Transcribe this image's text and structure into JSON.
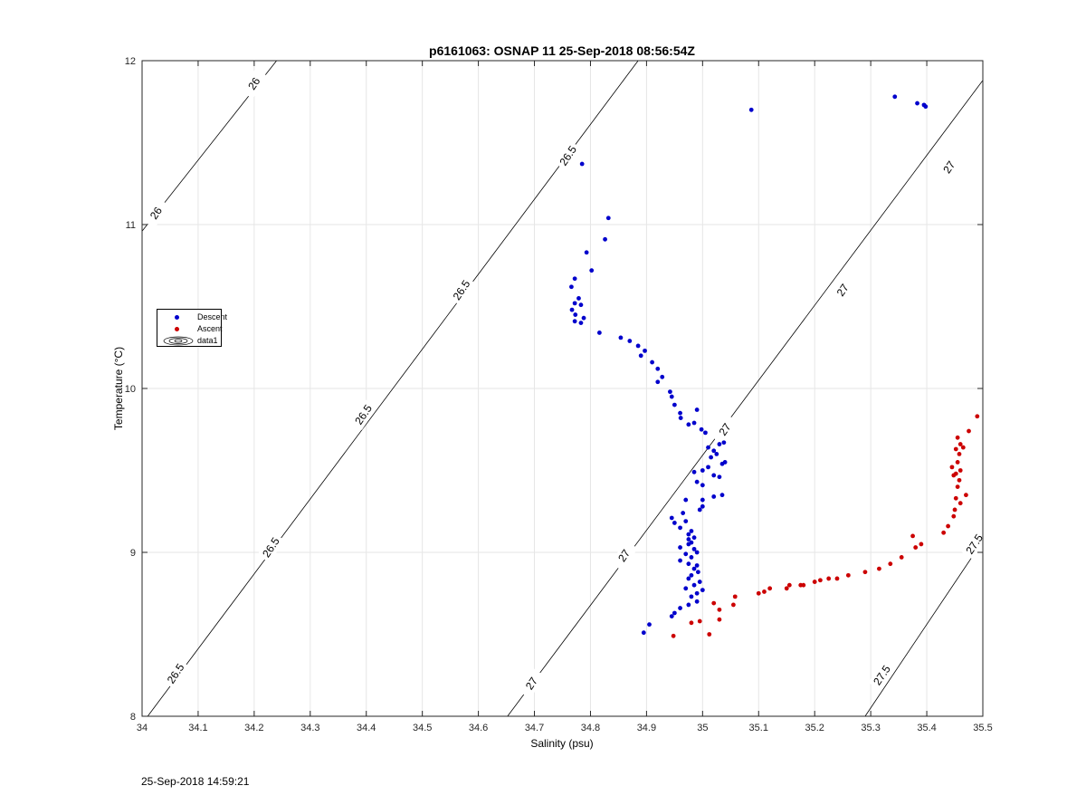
{
  "chart_data": {
    "type": "scatter",
    "title": "p6161063: OSNAP 11 25-Sep-2018 08:56:54Z",
    "xlabel": "Salinity (psu)",
    "ylabel": "Temperature (°C)",
    "xlim": [
      34,
      35.5
    ],
    "ylim": [
      8,
      12
    ],
    "x_ticks": [
      "34",
      "34.1",
      "34.2",
      "34.3",
      "34.4",
      "34.5",
      "34.6",
      "34.7",
      "34.8",
      "34.9",
      "35",
      "35.1",
      "35.2",
      "35.3",
      "35.4",
      "35.5"
    ],
    "y_ticks": [
      "8",
      "9",
      "10",
      "11",
      "12"
    ],
    "grid": true,
    "legend_position": "left",
    "legend": [
      "Descent",
      "Ascent",
      "data1"
    ],
    "contour_lines": [
      {
        "label": "26",
        "points": [
          [
            34.0,
            10.96
          ],
          [
            34.24,
            12.0
          ]
        ]
      },
      {
        "label": "26.5",
        "points": [
          [
            34.01,
            8.0
          ],
          [
            34.885,
            12.0
          ]
        ]
      },
      {
        "label": "27",
        "points": [
          [
            34.652,
            8.0
          ],
          [
            35.5,
            11.88
          ]
        ]
      },
      {
        "label": "27.5",
        "points": [
          [
            35.29,
            8.0
          ],
          [
            35.5,
            9.07
          ]
        ]
      }
    ],
    "contour_labels": [
      {
        "text": "26",
        "x": 34.2,
        "y": 11.86
      },
      {
        "text": "26",
        "x": 34.025,
        "y": 11.07
      },
      {
        "text": "26.5",
        "x": 34.76,
        "y": 11.42
      },
      {
        "text": "26.5",
        "x": 34.57,
        "y": 10.6
      },
      {
        "text": "26.5",
        "x": 34.395,
        "y": 9.84
      },
      {
        "text": "26.5",
        "x": 34.23,
        "y": 9.03
      },
      {
        "text": "26.5",
        "x": 34.06,
        "y": 8.26
      },
      {
        "text": "27",
        "x": 35.44,
        "y": 11.35
      },
      {
        "text": "27",
        "x": 35.25,
        "y": 10.6
      },
      {
        "text": "27",
        "x": 35.04,
        "y": 9.75
      },
      {
        "text": "27",
        "x": 34.86,
        "y": 8.98
      },
      {
        "text": "27",
        "x": 34.695,
        "y": 8.2
      },
      {
        "text": "27.5",
        "x": 35.485,
        "y": 9.05
      },
      {
        "text": "27.5",
        "x": 35.32,
        "y": 8.25
      }
    ],
    "series": [
      {
        "name": "Descent",
        "color": "#0000cc",
        "points": [
          [
            35.087,
            11.7
          ],
          [
            35.343,
            11.78
          ],
          [
            35.383,
            11.74
          ],
          [
            35.395,
            11.73
          ],
          [
            35.398,
            11.72
          ],
          [
            34.785,
            11.37
          ],
          [
            34.832,
            11.04
          ],
          [
            34.826,
            10.91
          ],
          [
            34.793,
            10.83
          ],
          [
            34.802,
            10.72
          ],
          [
            34.772,
            10.67
          ],
          [
            34.766,
            10.62
          ],
          [
            34.779,
            10.55
          ],
          [
            34.772,
            10.52
          ],
          [
            34.783,
            10.51
          ],
          [
            34.767,
            10.48
          ],
          [
            34.773,
            10.45
          ],
          [
            34.788,
            10.43
          ],
          [
            34.772,
            10.41
          ],
          [
            34.783,
            10.4
          ],
          [
            34.816,
            10.34
          ],
          [
            34.854,
            10.31
          ],
          [
            34.87,
            10.29
          ],
          [
            34.885,
            10.26
          ],
          [
            34.897,
            10.23
          ],
          [
            34.89,
            10.2
          ],
          [
            34.91,
            10.16
          ],
          [
            34.92,
            10.12
          ],
          [
            34.928,
            10.07
          ],
          [
            34.92,
            10.04
          ],
          [
            34.942,
            9.98
          ],
          [
            34.945,
            9.95
          ],
          [
            34.95,
            9.9
          ],
          [
            34.96,
            9.85
          ],
          [
            34.961,
            9.82
          ],
          [
            34.975,
            9.78
          ],
          [
            34.985,
            9.79
          ],
          [
            34.99,
            9.87
          ],
          [
            34.998,
            9.75
          ],
          [
            35.005,
            9.73
          ],
          [
            35.038,
            9.67
          ],
          [
            35.03,
            9.66
          ],
          [
            35.01,
            9.64
          ],
          [
            35.02,
            9.62
          ],
          [
            35.025,
            9.6
          ],
          [
            35.015,
            9.58
          ],
          [
            35.04,
            9.55
          ],
          [
            35.035,
            9.54
          ],
          [
            35.01,
            9.52
          ],
          [
            35.0,
            9.5
          ],
          [
            34.985,
            9.49
          ],
          [
            35.02,
            9.47
          ],
          [
            35.03,
            9.46
          ],
          [
            34.99,
            9.43
          ],
          [
            35.0,
            9.41
          ],
          [
            35.035,
            9.35
          ],
          [
            35.02,
            9.34
          ],
          [
            35.0,
            9.32
          ],
          [
            34.97,
            9.32
          ],
          [
            35.0,
            9.28
          ],
          [
            34.995,
            9.26
          ],
          [
            34.965,
            9.24
          ],
          [
            34.945,
            9.21
          ],
          [
            34.97,
            9.19
          ],
          [
            34.95,
            9.18
          ],
          [
            34.96,
            9.15
          ],
          [
            34.98,
            9.13
          ],
          [
            34.975,
            9.11
          ],
          [
            34.985,
            9.09
          ],
          [
            34.975,
            9.08
          ],
          [
            34.98,
            9.06
          ],
          [
            34.975,
            9.05
          ],
          [
            34.96,
            9.03
          ],
          [
            34.985,
            9.02
          ],
          [
            34.99,
            9.0
          ],
          [
            34.97,
            8.99
          ],
          [
            34.98,
            8.97
          ],
          [
            34.96,
            8.95
          ],
          [
            34.975,
            8.93
          ],
          [
            34.99,
            8.92
          ],
          [
            34.985,
            8.9
          ],
          [
            34.992,
            8.88
          ],
          [
            34.98,
            8.86
          ],
          [
            34.975,
            8.84
          ],
          [
            34.995,
            8.82
          ],
          [
            34.985,
            8.8
          ],
          [
            34.97,
            8.78
          ],
          [
            35.0,
            8.77
          ],
          [
            34.99,
            8.75
          ],
          [
            34.98,
            8.73
          ],
          [
            34.99,
            8.7
          ],
          [
            34.975,
            8.68
          ],
          [
            34.96,
            8.66
          ],
          [
            34.95,
            8.63
          ],
          [
            34.945,
            8.61
          ],
          [
            34.905,
            8.56
          ],
          [
            34.895,
            8.51
          ]
        ]
      },
      {
        "name": "Ascent",
        "color": "#cc0000",
        "points": [
          [
            35.49,
            9.83
          ],
          [
            35.475,
            9.74
          ],
          [
            35.455,
            9.7
          ],
          [
            35.46,
            9.66
          ],
          [
            35.465,
            9.64
          ],
          [
            35.452,
            9.63
          ],
          [
            35.458,
            9.6
          ],
          [
            35.455,
            9.55
          ],
          [
            35.445,
            9.52
          ],
          [
            35.46,
            9.5
          ],
          [
            35.452,
            9.48
          ],
          [
            35.448,
            9.47
          ],
          [
            35.458,
            9.44
          ],
          [
            35.455,
            9.4
          ],
          [
            35.47,
            9.35
          ],
          [
            35.452,
            9.33
          ],
          [
            35.46,
            9.3
          ],
          [
            35.45,
            9.26
          ],
          [
            35.448,
            9.22
          ],
          [
            35.438,
            9.16
          ],
          [
            35.43,
            9.12
          ],
          [
            35.375,
            9.1
          ],
          [
            35.39,
            9.05
          ],
          [
            35.38,
            9.03
          ],
          [
            35.355,
            8.97
          ],
          [
            35.335,
            8.93
          ],
          [
            35.315,
            8.9
          ],
          [
            35.29,
            8.88
          ],
          [
            35.26,
            8.86
          ],
          [
            35.24,
            8.84
          ],
          [
            35.225,
            8.84
          ],
          [
            35.21,
            8.83
          ],
          [
            35.2,
            8.82
          ],
          [
            35.18,
            8.8
          ],
          [
            35.175,
            8.8
          ],
          [
            35.155,
            8.8
          ],
          [
            35.15,
            8.78
          ],
          [
            35.12,
            8.78
          ],
          [
            35.11,
            8.76
          ],
          [
            35.1,
            8.75
          ],
          [
            35.058,
            8.73
          ],
          [
            35.055,
            8.68
          ],
          [
            35.03,
            8.65
          ],
          [
            35.02,
            8.69
          ],
          [
            35.03,
            8.59
          ],
          [
            34.995,
            8.58
          ],
          [
            34.98,
            8.57
          ],
          [
            35.012,
            8.5
          ],
          [
            34.948,
            8.49
          ]
        ]
      }
    ]
  },
  "footer": {
    "timestamp": "25-Sep-2018 14:59:21"
  }
}
